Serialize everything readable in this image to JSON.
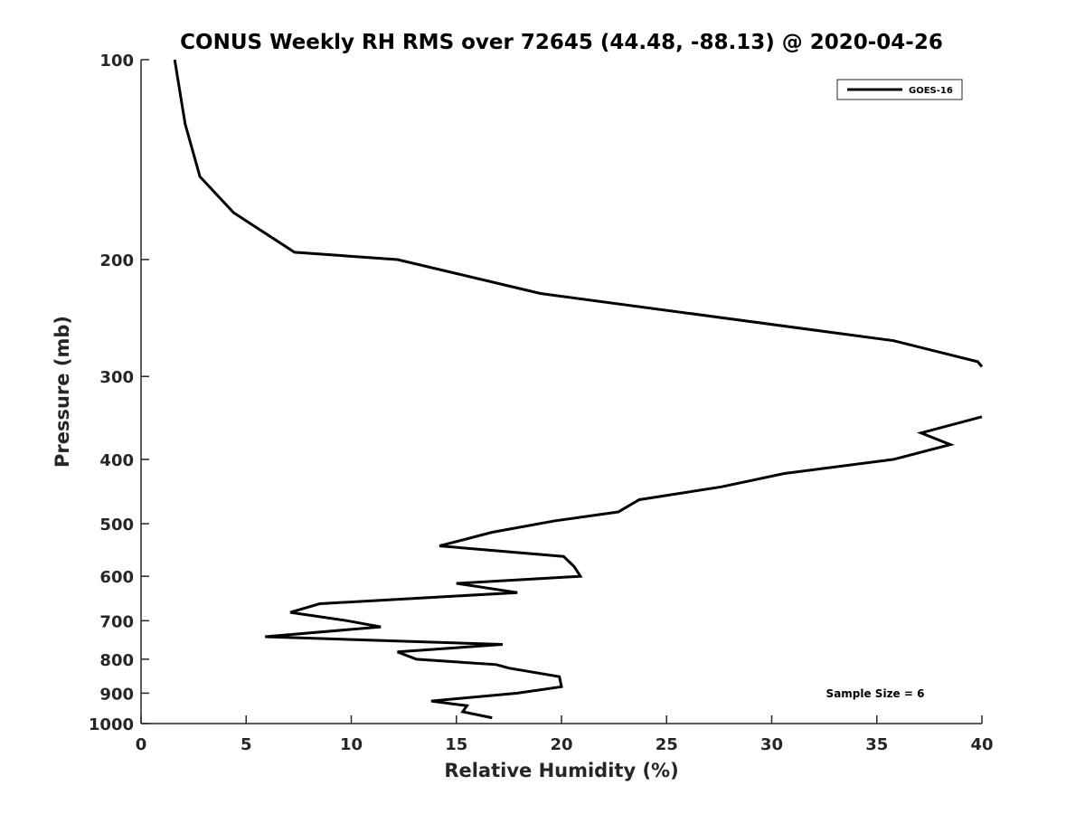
{
  "chart_data": {
    "type": "line",
    "title": "CONUS Weekly RH RMS over 72645 (44.48, -88.13) @ 2020-04-26",
    "xlabel": "Relative Humidity (%)",
    "ylabel": "Pressure (mb)",
    "xlim": [
      0,
      40
    ],
    "ylim": [
      100,
      1000
    ],
    "yscale": "log",
    "yreversed": true,
    "grid": false,
    "xticks": [
      0,
      5,
      10,
      15,
      20,
      25,
      30,
      35,
      40
    ],
    "yticks": [
      100,
      200,
      300,
      400,
      500,
      600,
      700,
      800,
      900,
      1000
    ],
    "legend": {
      "position": "top-right",
      "entries": [
        "GOES-16"
      ]
    },
    "annotation": "Sample Size = 6",
    "series": [
      {
        "name": "GOES-16",
        "color": "#000000",
        "segments": [
          [
            {
              "x": 1.6,
              "p": 100
            },
            {
              "x": 2.1,
              "p": 125
            },
            {
              "x": 2.8,
              "p": 150
            },
            {
              "x": 4.4,
              "p": 170
            },
            {
              "x": 7.3,
              "p": 195
            },
            {
              "x": 12.2,
              "p": 200
            },
            {
              "x": 19.0,
              "p": 225
            },
            {
              "x": 35.8,
              "p": 265
            },
            {
              "x": 39.8,
              "p": 285
            },
            {
              "x": 40.0,
              "p": 290
            }
          ],
          [
            {
              "x": 40.0,
              "p": 345
            },
            {
              "x": 37.1,
              "p": 365
            },
            {
              "x": 38.5,
              "p": 380
            },
            {
              "x": 35.8,
              "p": 400
            },
            {
              "x": 30.6,
              "p": 420
            },
            {
              "x": 27.6,
              "p": 440
            },
            {
              "x": 23.7,
              "p": 460
            },
            {
              "x": 22.7,
              "p": 480
            },
            {
              "x": 19.7,
              "p": 495
            },
            {
              "x": 16.7,
              "p": 515
            },
            {
              "x": 14.2,
              "p": 540
            },
            {
              "x": 20.1,
              "p": 560
            },
            {
              "x": 20.6,
              "p": 580
            },
            {
              "x": 20.9,
              "p": 600
            },
            {
              "x": 15.0,
              "p": 615
            },
            {
              "x": 17.9,
              "p": 635
            },
            {
              "x": 8.5,
              "p": 660
            },
            {
              "x": 7.1,
              "p": 680
            },
            {
              "x": 9.8,
              "p": 700
            },
            {
              "x": 11.4,
              "p": 715
            },
            {
              "x": 5.9,
              "p": 740
            },
            {
              "x": 17.2,
              "p": 760
            },
            {
              "x": 12.2,
              "p": 780
            },
            {
              "x": 13.1,
              "p": 800
            },
            {
              "x": 16.9,
              "p": 815
            },
            {
              "x": 17.5,
              "p": 825
            },
            {
              "x": 19.9,
              "p": 850
            },
            {
              "x": 20.0,
              "p": 880
            },
            {
              "x": 17.9,
              "p": 900
            },
            {
              "x": 13.8,
              "p": 925
            },
            {
              "x": 15.5,
              "p": 940
            },
            {
              "x": 15.3,
              "p": 960
            },
            {
              "x": 16.7,
              "p": 980
            }
          ]
        ]
      }
    ]
  }
}
